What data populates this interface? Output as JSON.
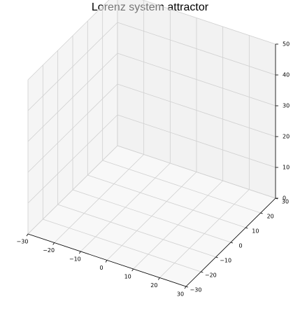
{
  "chart_data": {
    "type": "line",
    "projection": "3d",
    "title": "Lorenz system attractor",
    "xlabel": "",
    "ylabel": "",
    "zlabel": "",
    "xlim": [
      -30,
      30
    ],
    "ylim": [
      -30,
      30
    ],
    "zlim": [
      0,
      50
    ],
    "x_ticks": [
      -30,
      -20,
      -10,
      0,
      10,
      20,
      30
    ],
    "y_ticks": [
      -30,
      -20,
      -10,
      0,
      10,
      20,
      30
    ],
    "z_ticks": [
      0,
      10,
      20,
      30,
      40,
      50
    ],
    "x_tick_labels": [
      "−30",
      "−20",
      "−10",
      "0",
      "10",
      "20",
      "30"
    ],
    "y_tick_labels": [
      "−30",
      "−20",
      "−10",
      "0",
      "10",
      "20",
      "30"
    ],
    "z_tick_labels": [
      "0",
      "10",
      "20",
      "30",
      "40",
      "50"
    ],
    "grid": true,
    "series": []
  }
}
